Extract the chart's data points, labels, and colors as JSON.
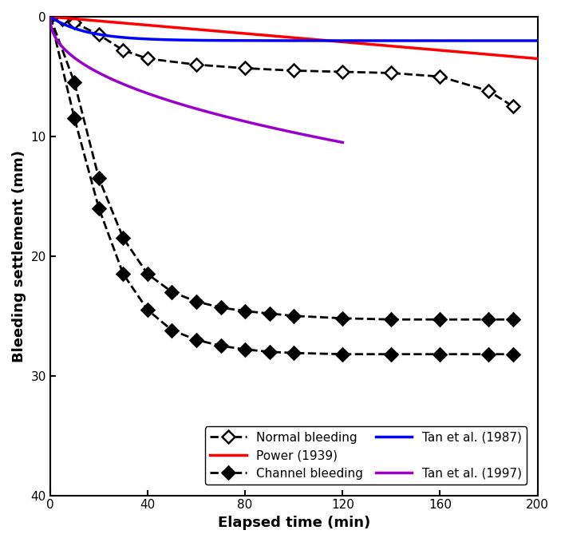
{
  "xlabel": "Elapsed time (min)",
  "ylabel": "Bleeding settlement (mm)",
  "xlim": [
    0,
    200
  ],
  "ylim_bottom": 40,
  "ylim_top": 0,
  "yticks": [
    0,
    10,
    20,
    30,
    40
  ],
  "xticks": [
    0,
    40,
    80,
    120,
    160,
    200
  ],
  "normal_bleeding_x": [
    0,
    5,
    10,
    20,
    30,
    40,
    60,
    80,
    100,
    120,
    140,
    160,
    180,
    190
  ],
  "normal_bleeding_y": [
    0,
    0.2,
    0.5,
    1.5,
    2.8,
    3.5,
    4.0,
    4.3,
    4.5,
    4.6,
    4.7,
    5.0,
    6.2,
    7.5
  ],
  "channel_bleeding1_x": [
    0,
    10,
    20,
    30,
    40,
    50,
    60,
    70,
    80,
    90,
    100,
    120,
    140,
    160,
    180,
    190
  ],
  "channel_bleeding1_y": [
    0,
    5.5,
    13.5,
    18.5,
    21.5,
    23.0,
    23.8,
    24.3,
    24.6,
    24.8,
    25.0,
    25.2,
    25.3,
    25.3,
    25.3,
    25.3
  ],
  "channel_bleeding2_x": [
    0,
    10,
    20,
    30,
    40,
    50,
    60,
    70,
    80,
    90,
    100,
    120,
    140,
    160,
    180,
    190
  ],
  "channel_bleeding2_y": [
    0,
    8.5,
    16.0,
    21.5,
    24.5,
    26.2,
    27.0,
    27.5,
    27.8,
    28.0,
    28.1,
    28.2,
    28.2,
    28.2,
    28.2,
    28.2
  ],
  "power_color": "#ff0000",
  "tan87_color": "#0000ff",
  "tan97_color": "#9900cc",
  "legend_fontsize": 11,
  "axis_fontsize": 13,
  "tick_fontsize": 11
}
